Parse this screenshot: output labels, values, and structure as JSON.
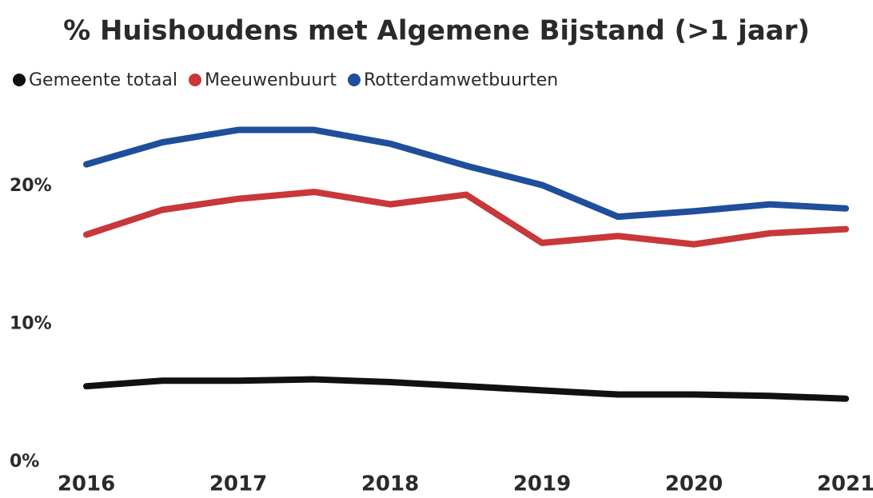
{
  "chart_data": {
    "type": "line",
    "title": "% Huishoudens met Algemene Bijstand (>1 jaar)",
    "x": [
      2016,
      2016.5,
      2017,
      2017.5,
      2018,
      2018.5,
      2019,
      2019.5,
      2020,
      2020.5,
      2021
    ],
    "series": [
      {
        "name": "Gemeente totaal",
        "color": "#111111",
        "values": [
          5.5,
          5.9,
          5.9,
          6.0,
          5.8,
          5.5,
          5.2,
          4.9,
          4.9,
          4.8,
          4.6
        ]
      },
      {
        "name": "Meeuwenbuurt",
        "color": "#c8373a",
        "values": [
          16.5,
          18.3,
          19.1,
          19.6,
          18.7,
          19.4,
          15.9,
          16.4,
          15.8,
          16.6,
          16.9
        ]
      },
      {
        "name": "Rotterdamwetbuurten",
        "color": "#1f4e9c",
        "values": [
          21.6,
          23.2,
          24.1,
          24.1,
          23.1,
          21.5,
          20.1,
          17.8,
          18.2,
          18.7,
          18.4
        ]
      }
    ],
    "xlim": [
      2016,
      2021
    ],
    "xticks": [
      2016,
      2017,
      2018,
      2019,
      2020,
      2021
    ],
    "ylim": [
      0,
      25
    ],
    "yticks": [
      {
        "value": 0,
        "label": "0%"
      },
      {
        "value": 10,
        "label": "10%"
      },
      {
        "value": 20,
        "label": "20%"
      }
    ],
    "grid": false,
    "legend": "top-left"
  }
}
